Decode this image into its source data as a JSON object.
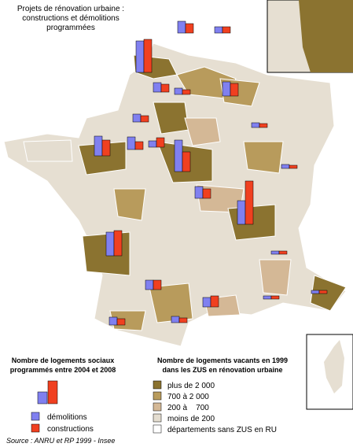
{
  "header": {
    "title_lines": [
      "Projets de rénovation urbaine :",
      "constructions et démolitions",
      "programmées"
    ]
  },
  "legend_bars": {
    "title_lines": [
      "Nombre de logements sociaux",
      "programmés entre 2004 et 2008"
    ],
    "items": [
      "démolitions",
      "constructions"
    ]
  },
  "legend_classes": {
    "title_lines": [
      "Nombre de logements vacants en 1999",
      "dans les ZUS en rénovation urbaine"
    ],
    "items": [
      "plus de 2 000",
      "700 à 2 000",
      "200 à    700",
      "moins de 200",
      "départements sans ZUS en RU"
    ]
  },
  "source": "Source : ANRU et RP 1999 - Insee"
}
